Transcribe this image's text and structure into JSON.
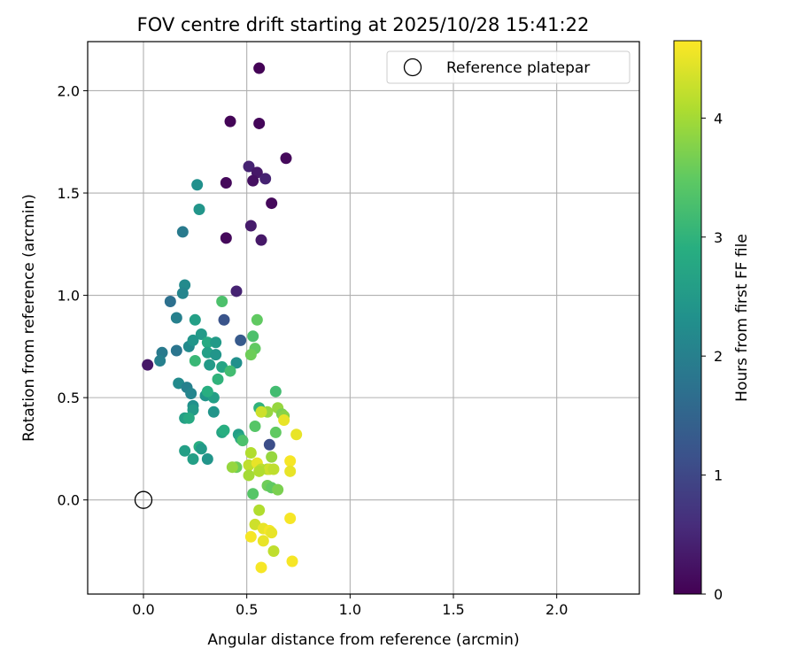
{
  "chart_data": {
    "type": "scatter",
    "title": "FOV centre drift starting at 2025/10/28 15:41:22",
    "xlabel": "Angular distance from reference (arcmin)",
    "ylabel": "Rotation from reference (arcmin)",
    "xlim": [
      -0.27,
      2.4
    ],
    "ylim": [
      -0.46,
      2.24
    ],
    "xticks": [
      0.0,
      0.5,
      1.0,
      1.5,
      2.0
    ],
    "yticks": [
      0.0,
      0.5,
      1.0,
      1.5,
      2.0
    ],
    "xtick_labels": [
      "0.0",
      "0.5",
      "1.0",
      "1.5",
      "2.0"
    ],
    "ytick_labels": [
      "0.0",
      "0.5",
      "1.0",
      "1.5",
      "2.0"
    ],
    "grid": true,
    "legend": {
      "position": "top-right",
      "entries": [
        "Reference platepar"
      ]
    },
    "reference_point": {
      "x": 0.0,
      "y": 0.0
    },
    "colorbar": {
      "label": "Hours from first FF file",
      "range": [
        0,
        4.65
      ],
      "ticks": [
        0,
        1,
        2,
        3,
        4
      ],
      "tick_labels": [
        "0",
        "1",
        "2",
        "3",
        "4"
      ],
      "colormap": "viridis"
    },
    "points": [
      {
        "x": 0.56,
        "y": 2.11,
        "h": 0.03
      },
      {
        "x": 0.42,
        "y": 1.85,
        "h": 0.05
      },
      {
        "x": 0.56,
        "y": 1.84,
        "h": 0.07
      },
      {
        "x": 0.69,
        "y": 1.67,
        "h": 0.1
      },
      {
        "x": 0.51,
        "y": 1.63,
        "h": 0.45
      },
      {
        "x": 0.55,
        "y": 1.6,
        "h": 0.3
      },
      {
        "x": 0.59,
        "y": 1.57,
        "h": 0.45
      },
      {
        "x": 0.4,
        "y": 1.55,
        "h": 0.1
      },
      {
        "x": 0.53,
        "y": 1.56,
        "h": 0.2
      },
      {
        "x": 0.62,
        "y": 1.45,
        "h": 0.1
      },
      {
        "x": 0.52,
        "y": 1.34,
        "h": 0.35
      },
      {
        "x": 0.4,
        "y": 1.28,
        "h": 0.1
      },
      {
        "x": 0.57,
        "y": 1.27,
        "h": 0.3
      },
      {
        "x": 0.45,
        "y": 1.02,
        "h": 0.45
      },
      {
        "x": 0.39,
        "y": 0.88,
        "h": 1.2
      },
      {
        "x": 0.47,
        "y": 0.78,
        "h": 1.3
      },
      {
        "x": 0.61,
        "y": 0.27,
        "h": 1.1
      },
      {
        "x": 0.02,
        "y": 0.66,
        "h": 0.3
      },
      {
        "x": 0.26,
        "y": 1.54,
        "h": 2.3
      },
      {
        "x": 0.27,
        "y": 1.42,
        "h": 2.4
      },
      {
        "x": 0.19,
        "y": 1.31,
        "h": 1.9
      },
      {
        "x": 0.2,
        "y": 1.05,
        "h": 2.2
      },
      {
        "x": 0.19,
        "y": 1.01,
        "h": 2.1
      },
      {
        "x": 0.13,
        "y": 0.97,
        "h": 1.7
      },
      {
        "x": 0.16,
        "y": 0.89,
        "h": 2.0
      },
      {
        "x": 0.25,
        "y": 0.88,
        "h": 2.6
      },
      {
        "x": 0.28,
        "y": 0.81,
        "h": 2.5
      },
      {
        "x": 0.22,
        "y": 0.75,
        "h": 2.2
      },
      {
        "x": 0.09,
        "y": 0.72,
        "h": 1.9
      },
      {
        "x": 0.08,
        "y": 0.68,
        "h": 2.0
      },
      {
        "x": 0.16,
        "y": 0.73,
        "h": 1.8
      },
      {
        "x": 0.24,
        "y": 0.78,
        "h": 2.4
      },
      {
        "x": 0.31,
        "y": 0.77,
        "h": 2.8
      },
      {
        "x": 0.35,
        "y": 0.77,
        "h": 2.5
      },
      {
        "x": 0.31,
        "y": 0.72,
        "h": 2.6
      },
      {
        "x": 0.35,
        "y": 0.71,
        "h": 2.4
      },
      {
        "x": 0.32,
        "y": 0.66,
        "h": 2.5
      },
      {
        "x": 0.45,
        "y": 0.67,
        "h": 2.3
      },
      {
        "x": 0.38,
        "y": 0.65,
        "h": 2.7
      },
      {
        "x": 0.42,
        "y": 0.63,
        "h": 3.2
      },
      {
        "x": 0.25,
        "y": 0.68,
        "h": 3.1
      },
      {
        "x": 0.38,
        "y": 0.97,
        "h": 3.3
      },
      {
        "x": 0.17,
        "y": 0.57,
        "h": 2.2
      },
      {
        "x": 0.21,
        "y": 0.55,
        "h": 2.0
      },
      {
        "x": 0.23,
        "y": 0.52,
        "h": 2.1
      },
      {
        "x": 0.3,
        "y": 0.51,
        "h": 2.4
      },
      {
        "x": 0.34,
        "y": 0.5,
        "h": 2.6
      },
      {
        "x": 0.24,
        "y": 0.46,
        "h": 2.3
      },
      {
        "x": 0.24,
        "y": 0.44,
        "h": 2.5
      },
      {
        "x": 0.34,
        "y": 0.43,
        "h": 2.4
      },
      {
        "x": 0.2,
        "y": 0.4,
        "h": 2.6
      },
      {
        "x": 0.22,
        "y": 0.4,
        "h": 2.8
      },
      {
        "x": 0.36,
        "y": 0.59,
        "h": 3.0
      },
      {
        "x": 0.31,
        "y": 0.53,
        "h": 2.9
      },
      {
        "x": 0.38,
        "y": 0.33,
        "h": 2.7
      },
      {
        "x": 0.39,
        "y": 0.34,
        "h": 2.9
      },
      {
        "x": 0.46,
        "y": 0.32,
        "h": 2.6
      },
      {
        "x": 0.47,
        "y": 0.3,
        "h": 2.8
      },
      {
        "x": 0.2,
        "y": 0.24,
        "h": 2.6
      },
      {
        "x": 0.27,
        "y": 0.26,
        "h": 2.9
      },
      {
        "x": 0.28,
        "y": 0.25,
        "h": 2.5
      },
      {
        "x": 0.24,
        "y": 0.2,
        "h": 2.6
      },
      {
        "x": 0.31,
        "y": 0.2,
        "h": 2.4
      },
      {
        "x": 0.55,
        "y": 0.88,
        "h": 3.5
      },
      {
        "x": 0.53,
        "y": 0.8,
        "h": 3.3
      },
      {
        "x": 0.54,
        "y": 0.74,
        "h": 3.5
      },
      {
        "x": 0.52,
        "y": 0.71,
        "h": 3.6
      },
      {
        "x": 0.64,
        "y": 0.53,
        "h": 3.2
      },
      {
        "x": 0.56,
        "y": 0.45,
        "h": 3.0
      },
      {
        "x": 0.65,
        "y": 0.45,
        "h": 3.9
      },
      {
        "x": 0.6,
        "y": 0.43,
        "h": 3.9
      },
      {
        "x": 0.67,
        "y": 0.42,
        "h": 3.7
      },
      {
        "x": 0.68,
        "y": 0.41,
        "h": 3.8
      },
      {
        "x": 0.54,
        "y": 0.36,
        "h": 3.4
      },
      {
        "x": 0.48,
        "y": 0.29,
        "h": 3.3
      },
      {
        "x": 0.64,
        "y": 0.33,
        "h": 3.5
      },
      {
        "x": 0.57,
        "y": 0.43,
        "h": 4.3
      },
      {
        "x": 0.68,
        "y": 0.39,
        "h": 4.5
      },
      {
        "x": 0.74,
        "y": 0.32,
        "h": 4.5
      },
      {
        "x": 0.52,
        "y": 0.23,
        "h": 4.1
      },
      {
        "x": 0.62,
        "y": 0.21,
        "h": 3.9
      },
      {
        "x": 0.45,
        "y": 0.16,
        "h": 3.6
      },
      {
        "x": 0.43,
        "y": 0.16,
        "h": 3.9
      },
      {
        "x": 0.51,
        "y": 0.17,
        "h": 4.2
      },
      {
        "x": 0.55,
        "y": 0.18,
        "h": 4.5
      },
      {
        "x": 0.57,
        "y": 0.15,
        "h": 4.2
      },
      {
        "x": 0.6,
        "y": 0.15,
        "h": 4.1
      },
      {
        "x": 0.61,
        "y": 0.15,
        "h": 4.3
      },
      {
        "x": 0.63,
        "y": 0.15,
        "h": 4.2
      },
      {
        "x": 0.51,
        "y": 0.12,
        "h": 4.0
      },
      {
        "x": 0.56,
        "y": 0.14,
        "h": 4.1
      },
      {
        "x": 0.71,
        "y": 0.19,
        "h": 4.6
      },
      {
        "x": 0.71,
        "y": 0.14,
        "h": 4.5
      },
      {
        "x": 0.6,
        "y": 0.07,
        "h": 3.6
      },
      {
        "x": 0.62,
        "y": 0.06,
        "h": 3.5
      },
      {
        "x": 0.65,
        "y": 0.05,
        "h": 3.7
      },
      {
        "x": 0.53,
        "y": 0.03,
        "h": 3.4
      },
      {
        "x": 0.56,
        "y": -0.05,
        "h": 4.1
      },
      {
        "x": 0.71,
        "y": -0.09,
        "h": 4.6
      },
      {
        "x": 0.54,
        "y": -0.12,
        "h": 4.3
      },
      {
        "x": 0.58,
        "y": -0.14,
        "h": 4.5
      },
      {
        "x": 0.61,
        "y": -0.15,
        "h": 4.6
      },
      {
        "x": 0.62,
        "y": -0.16,
        "h": 4.5
      },
      {
        "x": 0.52,
        "y": -0.18,
        "h": 4.6
      },
      {
        "x": 0.58,
        "y": -0.2,
        "h": 4.5
      },
      {
        "x": 0.63,
        "y": -0.25,
        "h": 4.2
      },
      {
        "x": 0.72,
        "y": -0.3,
        "h": 4.6
      },
      {
        "x": 0.57,
        "y": -0.33,
        "h": 4.6
      }
    ]
  }
}
